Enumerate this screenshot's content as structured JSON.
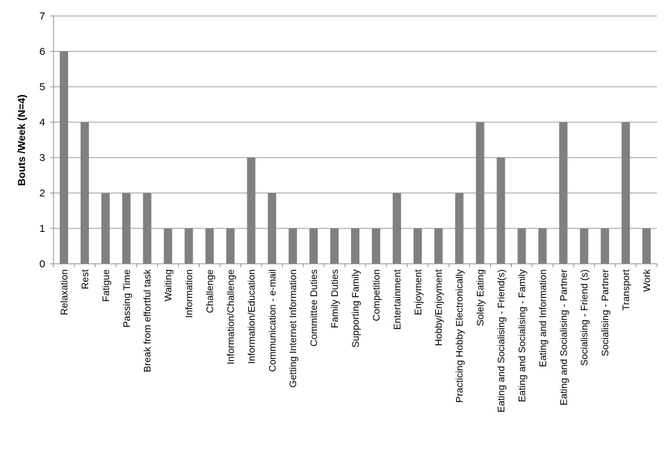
{
  "chart_data": {
    "type": "bar",
    "y_label": "Bouts /Week  (N=4)",
    "categories": [
      "Relaxation",
      "Rest",
      "Fatigue",
      "Passing Time",
      "Break from effortful task",
      "Waiting",
      "Information",
      "Challenge",
      "Information/Challenge",
      "Information/Education",
      "Communication - e-mail",
      "Getting Internet Information",
      "Committee Duties",
      "Family Duties",
      "Supporting Family",
      "Competition",
      "Entertainment",
      "Enjoyment",
      "Hobby/Enjoyment",
      "Practicing Hobby Electronically",
      "Solely Eating",
      "Eating and Socialising - Friend(s)",
      "Eating and Socialising - Family",
      "Eating and Information",
      "Eating and Socialising - Partner",
      "Socialising - Friend (s)",
      "Socialising - Partner",
      "Transport",
      "Work"
    ],
    "values": [
      6,
      4,
      2,
      2,
      2,
      1,
      1,
      1,
      1,
      3,
      2,
      1,
      1,
      1,
      1,
      1,
      2,
      1,
      1,
      2,
      4,
      3,
      1,
      1,
      4,
      1,
      1,
      4,
      1
    ],
    "color": "#808080",
    "ylim": [
      0,
      7
    ],
    "yticks": [
      0,
      1,
      2,
      3,
      4,
      5,
      6,
      7
    ],
    "grid": true
  }
}
